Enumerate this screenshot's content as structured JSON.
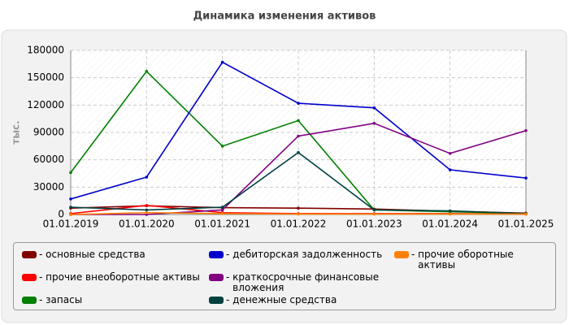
{
  "chart_data": {
    "type": "line",
    "title": "Динамика изменения активов",
    "y_label": "тыс.",
    "categories": [
      "01.01.2019",
      "01.01.2020",
      "01.01.2021",
      "01.01.2022",
      "01.01.2023",
      "01.01.2024",
      "01.01.2025"
    ],
    "series": [
      {
        "name": "основные средства",
        "color": "#800000",
        "values": [
          7000,
          9500,
          7500,
          7000,
          6000,
          3500,
          1500
        ]
      },
      {
        "name": "прочие внеоборотные активы",
        "color": "#ff0000",
        "values": [
          1000,
          10000,
          2000,
          1000,
          1000,
          1000,
          500
        ]
      },
      {
        "name": "запасы",
        "color": "#008000",
        "values": [
          46000,
          157000,
          75000,
          103000,
          5000,
          3000,
          1000
        ]
      },
      {
        "name": "дебиторская задолженность",
        "color": "#0000cc",
        "values": [
          17000,
          41000,
          167000,
          122000,
          117000,
          49000,
          40000
        ]
      },
      {
        "name": "краткосрочные финансовые вложения",
        "color": "#800080",
        "values": [
          0,
          0,
          5000,
          86000,
          100000,
          67000,
          92000
        ]
      },
      {
        "name": "денежные средства",
        "color": "#004040",
        "values": [
          8000,
          5000,
          8000,
          68000,
          5000,
          4000,
          1000
        ]
      },
      {
        "name": "прочие оборотные активы",
        "color": "#ff8000",
        "values": [
          0,
          2000,
          1000,
          500,
          500,
          500,
          500
        ]
      }
    ],
    "ylim": [
      0,
      180000
    ],
    "yticks": [
      0,
      30000,
      60000,
      90000,
      120000,
      150000,
      180000
    ],
    "grid": true,
    "legend": "bottom"
  }
}
